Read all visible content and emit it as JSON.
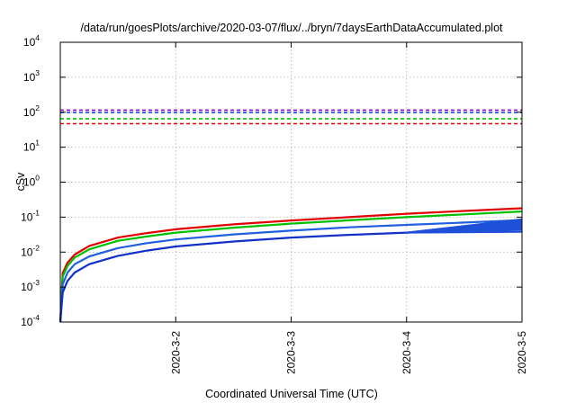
{
  "chart_data": {
    "type": "line",
    "title": "/data/run/goesPlots/archive/2020-03-07/flux/../bryn/7daysEarthDataAccumulated.plot",
    "xlabel": "Coordinated Universal Time (UTC)",
    "ylabel": "cSv",
    "y_scale": "log",
    "ylim": [
      0.0001,
      10000
    ],
    "y_ticks": [
      {
        "base": "10",
        "exp": "-4",
        "value": 0.0001
      },
      {
        "base": "10",
        "exp": "-3",
        "value": 0.001
      },
      {
        "base": "10",
        "exp": "-2",
        "value": 0.01
      },
      {
        "base": "10",
        "exp": "-1",
        "value": 0.1
      },
      {
        "base": "10",
        "exp": "0",
        "value": 1
      },
      {
        "base": "10",
        "exp": "1",
        "value": 10
      },
      {
        "base": "10",
        "exp": "2",
        "value": 100
      },
      {
        "base": "10",
        "exp": "3",
        "value": 1000
      },
      {
        "base": "10",
        "exp": "4",
        "value": 10000
      }
    ],
    "xlim": [
      "2020-03-01",
      "2020-03-05"
    ],
    "x_ticks": [
      {
        "label": "2020-3-2",
        "value": "2020-03-02"
      },
      {
        "label": "2020-3-3",
        "value": "2020-03-03"
      },
      {
        "label": "2020-3-4",
        "value": "2020-03-04"
      },
      {
        "label": "2020-3-5",
        "value": "2020-03-05"
      }
    ],
    "grid": true,
    "thresholds": [
      {
        "value": 115,
        "color": "#9400d3"
      },
      {
        "value": 98,
        "color": "#1f4fe0"
      },
      {
        "value": 65,
        "color": "#00c000"
      },
      {
        "value": 47,
        "color": "#e00000"
      }
    ],
    "series": [
      {
        "color": "#e00000",
        "points": [
          [
            "2020-03-01T00:00",
            0.0001
          ],
          [
            "2020-03-01T00:30",
            0.0025
          ],
          [
            "2020-03-01T01:30",
            0.005
          ],
          [
            "2020-03-01T03:00",
            0.0085
          ],
          [
            "2020-03-01T06:00",
            0.015
          ],
          [
            "2020-03-01T12:00",
            0.026
          ],
          [
            "2020-03-01T18:00",
            0.035
          ],
          [
            "2020-03-02T00:00",
            0.045
          ],
          [
            "2020-03-02T12:00",
            0.062
          ],
          [
            "2020-03-03T00:00",
            0.08
          ],
          [
            "2020-03-03T12:00",
            0.1
          ],
          [
            "2020-03-04T00:00",
            0.125
          ],
          [
            "2020-03-04T12:00",
            0.15
          ],
          [
            "2020-03-05T00:00",
            0.18
          ]
        ]
      },
      {
        "color": "#00c000",
        "points": [
          [
            "2020-03-01T00:00",
            0.0001
          ],
          [
            "2020-03-01T00:30",
            0.002
          ],
          [
            "2020-03-01T01:30",
            0.004
          ],
          [
            "2020-03-01T03:00",
            0.007
          ],
          [
            "2020-03-01T06:00",
            0.012
          ],
          [
            "2020-03-01T12:00",
            0.021
          ],
          [
            "2020-03-01T18:00",
            0.028
          ],
          [
            "2020-03-02T00:00",
            0.036
          ],
          [
            "2020-03-02T12:00",
            0.05
          ],
          [
            "2020-03-03T00:00",
            0.065
          ],
          [
            "2020-03-03T12:00",
            0.081
          ],
          [
            "2020-03-04T00:00",
            0.1
          ],
          [
            "2020-03-04T12:00",
            0.12
          ],
          [
            "2020-03-05T00:00",
            0.145
          ]
        ]
      },
      {
        "color": "#1f5fe0",
        "points": [
          [
            "2020-03-01T00:00",
            0.0001
          ],
          [
            "2020-03-01T00:30",
            0.0012
          ],
          [
            "2020-03-01T01:30",
            0.0026
          ],
          [
            "2020-03-01T03:00",
            0.0045
          ],
          [
            "2020-03-01T06:00",
            0.0075
          ],
          [
            "2020-03-01T12:00",
            0.013
          ],
          [
            "2020-03-01T18:00",
            0.018
          ],
          [
            "2020-03-02T00:00",
            0.023
          ],
          [
            "2020-03-02T12:00",
            0.032
          ],
          [
            "2020-03-03T00:00",
            0.041
          ],
          [
            "2020-03-03T12:00",
            0.051
          ],
          [
            "2020-03-04T00:00",
            0.06
          ],
          [
            "2020-03-04T12:00",
            0.07
          ],
          [
            "2020-03-05T00:00",
            0.082
          ]
        ]
      },
      {
        "color": "#1030c8",
        "points": [
          [
            "2020-03-01T00:00",
            0.0001
          ],
          [
            "2020-03-01T00:30",
            0.0007
          ],
          [
            "2020-03-01T01:30",
            0.0015
          ],
          [
            "2020-03-01T03:00",
            0.0026
          ],
          [
            "2020-03-01T06:00",
            0.0045
          ],
          [
            "2020-03-01T12:00",
            0.0078
          ],
          [
            "2020-03-01T18:00",
            0.011
          ],
          [
            "2020-03-02T00:00",
            0.0145
          ],
          [
            "2020-03-02T12:00",
            0.02
          ],
          [
            "2020-03-03T00:00",
            0.026
          ],
          [
            "2020-03-03T12:00",
            0.031
          ],
          [
            "2020-03-04T00:00",
            0.036
          ],
          [
            "2020-03-04T12:00",
            0.042
          ],
          [
            "2020-03-05T00:00",
            0.048
          ]
        ]
      }
    ],
    "fan_start": "2020-03-04",
    "fan_start_value": 0.036,
    "fan_end_values": [
      0.038,
      0.043,
      0.048,
      0.053,
      0.058,
      0.063,
      0.068,
      0.073,
      0.08,
      0.087
    ]
  }
}
